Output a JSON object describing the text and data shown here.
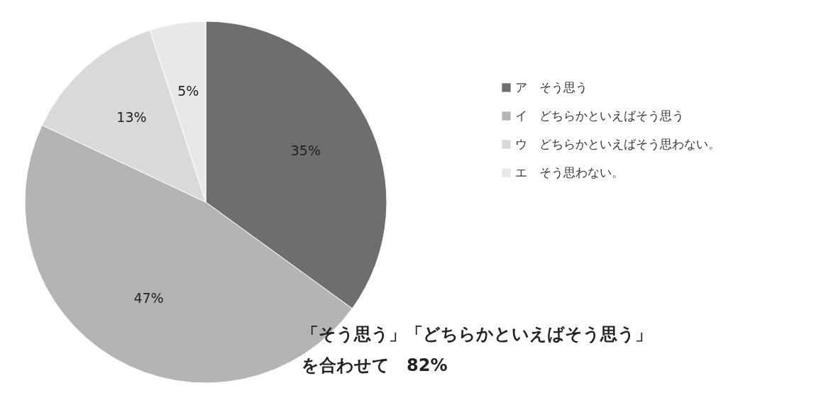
{
  "chart_data": {
    "type": "pie",
    "categories": [
      "ア　そう思う",
      "イ　どちらかといえばそう思う",
      "ウ　どちらかといえばそう思わない。",
      "エ　そう思わない。"
    ],
    "values": [
      35,
      47,
      13,
      5
    ],
    "colors": [
      "#6e6e6e",
      "#b4b4b4",
      "#d9d9d9",
      "#e8e8e8"
    ],
    "value_labels": [
      "35%",
      "47%",
      "13%",
      "5%"
    ],
    "legend": "right",
    "annotations": [
      "「そう思う」「どちらかといえばそう思う」",
      "を合わせて　82%"
    ]
  }
}
